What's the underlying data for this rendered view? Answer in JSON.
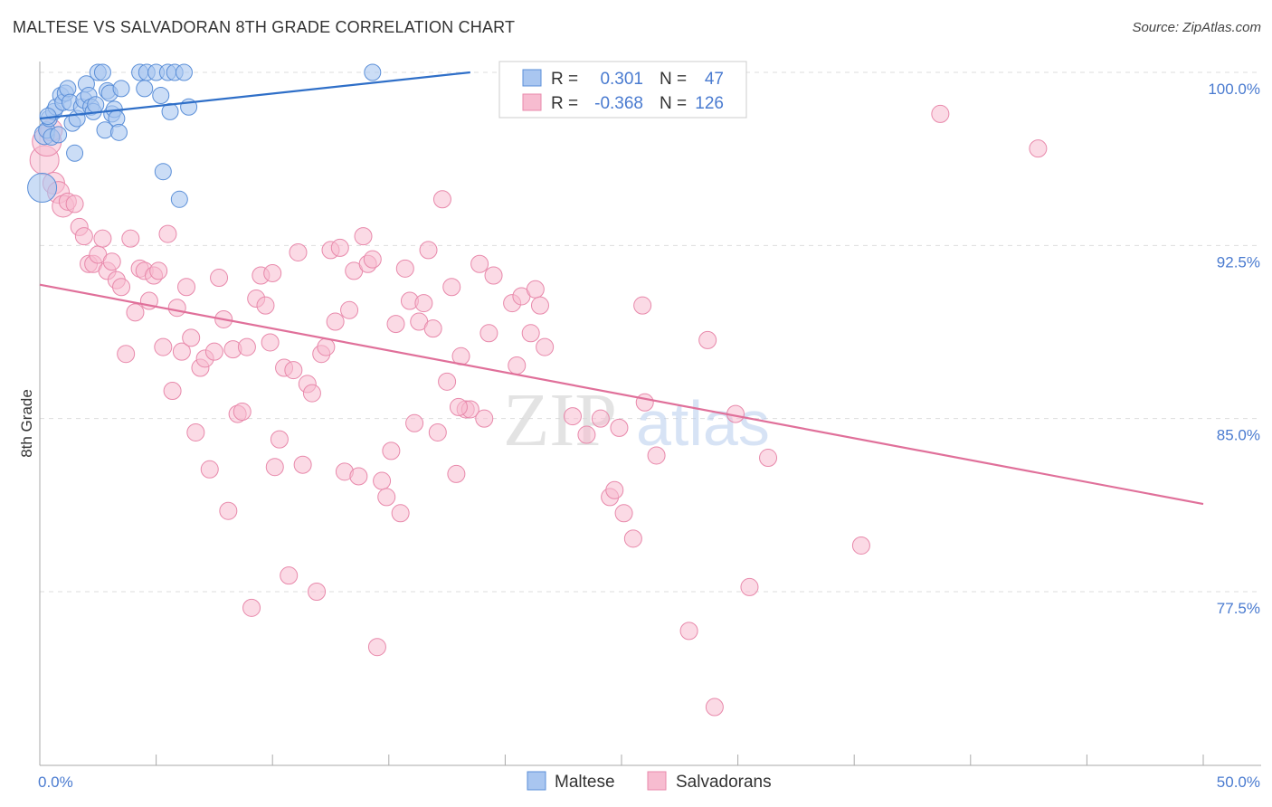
{
  "title": "MALTESE VS SALVADORAN 8TH GRADE CORRELATION CHART",
  "source": "Source: ZipAtlas.com",
  "watermark": {
    "zip": "ZIP",
    "atlas": "atlas"
  },
  "colors": {
    "maltese_fill": "#a9c6f0",
    "maltese_stroke": "#5b8fd8",
    "maltese_line": "#2f6fc8",
    "salvadoran_fill": "#f7bcd0",
    "salvadoran_stroke": "#e889ab",
    "salvadoran_line": "#e0709a",
    "axis_text": "#4a7bd0",
    "grid": "#dddddd"
  },
  "legend": {
    "r_label": "R =",
    "n_label": "N =",
    "maltese": {
      "r": "0.301",
      "n": "47"
    },
    "salvadoran": {
      "r": "-0.368",
      "n": "126"
    }
  },
  "bottom_legend": {
    "maltese": "Maltese",
    "salvadoran": "Salvadorans"
  },
  "chart_data": {
    "type": "scatter",
    "title": "MALTESE VS SALVADORAN 8TH GRADE CORRELATION CHART",
    "xlabel": "",
    "ylabel": "8th Grade",
    "xlim": [
      0,
      50
    ],
    "ylim": [
      71.5,
      101.5
    ],
    "x_tick_labels": [
      {
        "value": 0,
        "label": "0.0%"
      },
      {
        "value": 50,
        "label": "50.0%"
      }
    ],
    "y_ticks": [
      {
        "value": 100.0,
        "label": "100.0%"
      },
      {
        "value": 92.5,
        "label": "92.5%"
      },
      {
        "value": 85.0,
        "label": "85.0%"
      },
      {
        "value": 77.5,
        "label": "77.5%"
      }
    ],
    "grid": "horizontal dashed",
    "legend_position": "top-center",
    "series": [
      {
        "name": "Maltese",
        "r": 0.301,
        "n": 47,
        "trend": {
          "x": [
            0,
            18.5
          ],
          "y": [
            98.0,
            100.0
          ]
        },
        "points": [
          [
            0.1,
            95.0
          ],
          [
            0.2,
            97.3
          ],
          [
            0.3,
            97.5
          ],
          [
            0.4,
            98.0
          ],
          [
            0.5,
            97.2
          ],
          [
            0.6,
            98.3
          ],
          [
            0.7,
            98.5
          ],
          [
            0.8,
            97.3
          ],
          [
            0.9,
            99.0
          ],
          [
            1.0,
            98.7
          ],
          [
            1.1,
            99.1
          ],
          [
            1.2,
            99.3
          ],
          [
            1.3,
            98.7
          ],
          [
            1.4,
            97.8
          ],
          [
            1.5,
            96.5
          ],
          [
            1.6,
            98.0
          ],
          [
            1.8,
            98.5
          ],
          [
            1.9,
            98.8
          ],
          [
            2.0,
            99.5
          ],
          [
            2.1,
            99.0
          ],
          [
            2.2,
            98.5
          ],
          [
            2.3,
            98.3
          ],
          [
            2.5,
            100.0
          ],
          [
            2.7,
            100.0
          ],
          [
            2.8,
            97.5
          ],
          [
            2.9,
            99.2
          ],
          [
            3.0,
            99.1
          ],
          [
            3.1,
            98.2
          ],
          [
            3.2,
            98.4
          ],
          [
            3.3,
            98.0
          ],
          [
            3.4,
            97.4
          ],
          [
            3.5,
            99.3
          ],
          [
            4.3,
            100.0
          ],
          [
            4.5,
            99.3
          ],
          [
            4.6,
            100.0
          ],
          [
            5.0,
            100.0
          ],
          [
            5.2,
            99.0
          ],
          [
            5.3,
            95.7
          ],
          [
            5.5,
            100.0
          ],
          [
            5.8,
            100.0
          ],
          [
            5.6,
            98.3
          ],
          [
            6.0,
            94.5
          ],
          [
            6.2,
            100.0
          ],
          [
            6.4,
            98.5
          ],
          [
            14.3,
            100.0
          ],
          [
            0.35,
            98.1
          ],
          [
            2.4,
            98.6
          ]
        ]
      },
      {
        "name": "Salvadorans",
        "r": -0.368,
        "n": 126,
        "trend": {
          "x": [
            0,
            50
          ],
          "y": [
            90.8,
            81.3
          ]
        },
        "points": [
          [
            0.2,
            96.2
          ],
          [
            0.3,
            97.0
          ],
          [
            0.5,
            97.5
          ],
          [
            0.6,
            95.2
          ],
          [
            0.8,
            94.8
          ],
          [
            1.0,
            94.2
          ],
          [
            1.2,
            94.4
          ],
          [
            1.5,
            94.3
          ],
          [
            1.7,
            93.3
          ],
          [
            1.9,
            92.9
          ],
          [
            2.1,
            91.7
          ],
          [
            2.3,
            91.7
          ],
          [
            2.5,
            92.1
          ],
          [
            2.7,
            92.8
          ],
          [
            2.9,
            91.4
          ],
          [
            3.1,
            91.8
          ],
          [
            3.3,
            91.0
          ],
          [
            3.5,
            90.7
          ],
          [
            3.7,
            87.8
          ],
          [
            3.9,
            92.8
          ],
          [
            4.1,
            89.6
          ],
          [
            4.3,
            91.5
          ],
          [
            4.5,
            91.4
          ],
          [
            4.7,
            90.1
          ],
          [
            4.9,
            91.2
          ],
          [
            5.1,
            91.4
          ],
          [
            5.3,
            88.1
          ],
          [
            5.5,
            93.0
          ],
          [
            5.7,
            86.2
          ],
          [
            5.9,
            89.8
          ],
          [
            6.1,
            87.9
          ],
          [
            6.3,
            90.7
          ],
          [
            6.5,
            88.5
          ],
          [
            6.7,
            84.4
          ],
          [
            6.9,
            87.2
          ],
          [
            7.1,
            87.6
          ],
          [
            7.3,
            82.8
          ],
          [
            7.5,
            87.9
          ],
          [
            7.7,
            91.1
          ],
          [
            7.9,
            89.3
          ],
          [
            8.1,
            81.0
          ],
          [
            8.3,
            88.0
          ],
          [
            8.5,
            85.2
          ],
          [
            8.7,
            85.3
          ],
          [
            8.9,
            88.1
          ],
          [
            9.1,
            76.8
          ],
          [
            9.3,
            90.2
          ],
          [
            9.5,
            91.2
          ],
          [
            9.7,
            89.9
          ],
          [
            9.9,
            88.3
          ],
          [
            10.1,
            82.9
          ],
          [
            10.3,
            84.1
          ],
          [
            10.5,
            87.2
          ],
          [
            10.7,
            78.2
          ],
          [
            10.9,
            87.1
          ],
          [
            11.1,
            92.2
          ],
          [
            11.3,
            83.0
          ],
          [
            11.5,
            86.5
          ],
          [
            11.7,
            86.1
          ],
          [
            11.9,
            77.5
          ],
          [
            12.1,
            87.8
          ],
          [
            12.3,
            88.1
          ],
          [
            12.5,
            92.3
          ],
          [
            12.7,
            89.2
          ],
          [
            12.9,
            92.4
          ],
          [
            13.1,
            82.7
          ],
          [
            13.3,
            89.7
          ],
          [
            13.5,
            91.4
          ],
          [
            13.7,
            82.5
          ],
          [
            13.9,
            92.9
          ],
          [
            14.1,
            91.7
          ],
          [
            14.3,
            91.9
          ],
          [
            14.5,
            75.1
          ],
          [
            14.7,
            82.3
          ],
          [
            14.9,
            81.6
          ],
          [
            15.1,
            83.6
          ],
          [
            15.3,
            89.1
          ],
          [
            15.5,
            80.9
          ],
          [
            15.7,
            91.5
          ],
          [
            15.9,
            90.1
          ],
          [
            16.1,
            84.8
          ],
          [
            16.3,
            89.2
          ],
          [
            16.5,
            90.0
          ],
          [
            16.7,
            92.3
          ],
          [
            16.9,
            88.9
          ],
          [
            17.1,
            84.4
          ],
          [
            17.3,
            94.5
          ],
          [
            17.5,
            86.6
          ],
          [
            17.7,
            90.7
          ],
          [
            17.9,
            82.6
          ],
          [
            18.1,
            87.7
          ],
          [
            18.3,
            85.4
          ],
          [
            18.5,
            85.4
          ],
          [
            18.9,
            91.7
          ],
          [
            19.1,
            85.0
          ],
          [
            19.3,
            88.7
          ],
          [
            19.5,
            91.2
          ],
          [
            20.3,
            90.0
          ],
          [
            20.5,
            87.3
          ],
          [
            20.7,
            90.3
          ],
          [
            21.1,
            88.7
          ],
          [
            21.3,
            90.6
          ],
          [
            21.5,
            89.9
          ],
          [
            21.7,
            88.1
          ],
          [
            22.9,
            85.1
          ],
          [
            23.5,
            84.3
          ],
          [
            24.1,
            85.0
          ],
          [
            24.5,
            81.6
          ],
          [
            24.7,
            81.9
          ],
          [
            25.1,
            80.9
          ],
          [
            25.5,
            79.8
          ],
          [
            26.5,
            83.4
          ],
          [
            27.9,
            75.8
          ],
          [
            28.7,
            88.4
          ],
          [
            29.9,
            85.2
          ],
          [
            30.5,
            77.7
          ],
          [
            31.3,
            83.3
          ],
          [
            35.3,
            79.5
          ],
          [
            38.7,
            98.2
          ],
          [
            42.9,
            96.7
          ],
          [
            25.9,
            89.9
          ],
          [
            29.0,
            72.5
          ],
          [
            24.9,
            84.6
          ],
          [
            18.0,
            85.5
          ],
          [
            10.0,
            91.3
          ],
          [
            26.0,
            85.7
          ]
        ]
      }
    ]
  }
}
